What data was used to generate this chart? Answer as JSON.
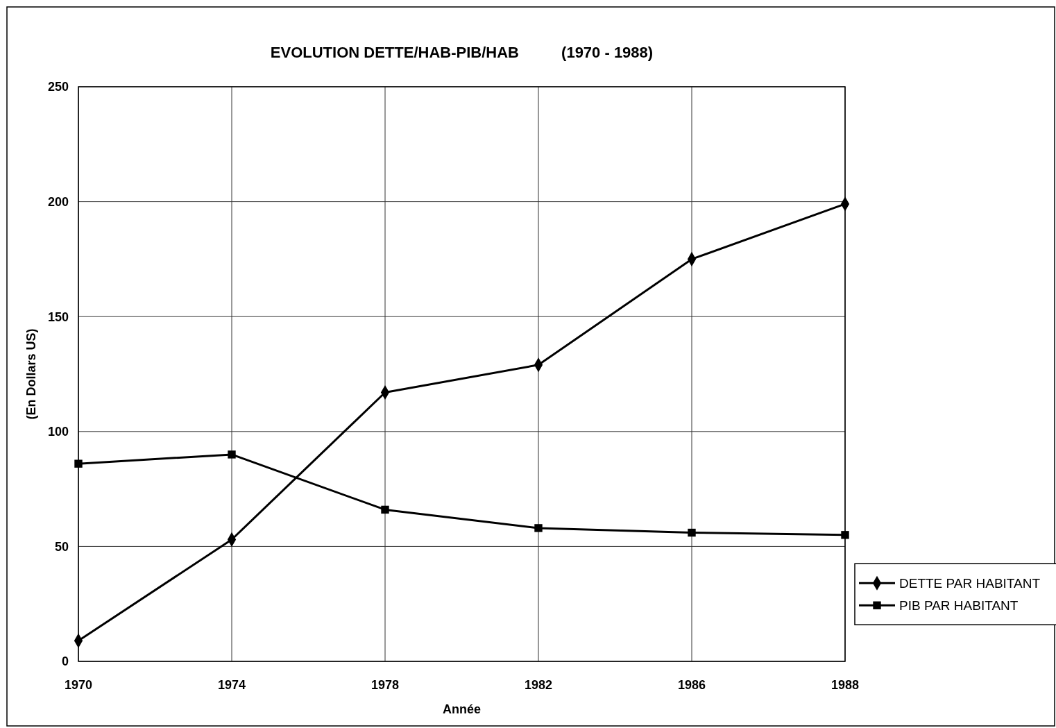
{
  "chart_data": {
    "type": "line",
    "title": "EVOLUTION DETTE/HAB-PIB/HAB          (1970 - 1988)",
    "xlabel": "Année",
    "ylabel": "(En Dollars US)",
    "categories": [
      "1970",
      "1974",
      "1978",
      "1982",
      "1986",
      "1988"
    ],
    "series": [
      {
        "name": "DETTE PAR HABITANT",
        "color": "#000000",
        "values": [
          9,
          53,
          117,
          129,
          175,
          199
        ],
        "marker": "diamond"
      },
      {
        "name": "PIB PAR HABITANT",
        "color": "#000000",
        "values": [
          86,
          90,
          66,
          58,
          56,
          55
        ],
        "marker": "square"
      }
    ],
    "ylim": [
      0,
      250
    ],
    "yticks": [
      0,
      50,
      100,
      150,
      200,
      250
    ],
    "grid": true,
    "legend": "right",
    "line_style": "solid"
  }
}
